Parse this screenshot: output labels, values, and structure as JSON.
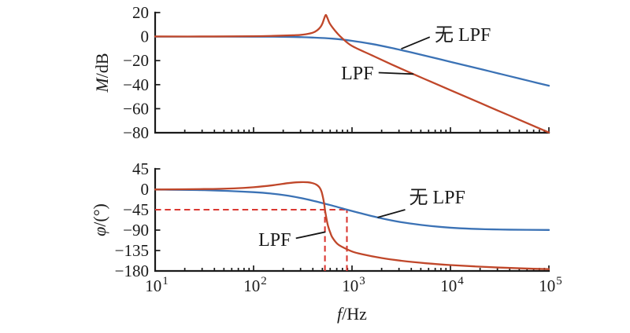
{
  "figure": {
    "background": "#ffffff",
    "description": "Bode plots comparing magnitude and phase response with and without LPF"
  },
  "colors": {
    "blue": "#3b72b5",
    "red": "#c0472a",
    "dashed_red": "#da3832",
    "axis": "#1a1a1a"
  },
  "chart_data": [
    {
      "id": "magnitude",
      "type": "line",
      "x_scale": "log",
      "xlim_log10": [
        1,
        5
      ],
      "ylim": [
        -80,
        20
      ],
      "ylabel": "M/dB",
      "ylabel_parts": [
        {
          "t": "M",
          "italic": true
        },
        {
          "t": "/dB",
          "italic": false
        }
      ],
      "y_ticks": [
        20,
        0,
        -20,
        -40,
        -60,
        -80
      ],
      "y_tick_labels": [
        "20",
        "0",
        "−20",
        "−40",
        "−60",
        "−80"
      ],
      "show_x_tick_labels": false,
      "grid": false,
      "series": [
        {
          "id": "wu-lpf",
          "name": "无 LPF",
          "color_key": "blue",
          "points": [
            [
              1,
              0
            ],
            [
              1.6,
              0
            ],
            [
              2,
              -0.1
            ],
            [
              2.2,
              -0.1
            ],
            [
              2.4,
              -0.3
            ],
            [
              2.6,
              -0.8
            ],
            [
              2.8,
              -1.7
            ],
            [
              3,
              -3.5
            ],
            [
              3.2,
              -6.1
            ],
            [
              3.4,
              -9.4
            ],
            [
              3.6,
              -13.1
            ],
            [
              3.8,
              -17
            ],
            [
              4,
              -21
            ],
            [
              4.2,
              -24.9
            ],
            [
              4.4,
              -28.9
            ],
            [
              4.6,
              -32.9
            ],
            [
              4.8,
              -36.9
            ],
            [
              5,
              -40.9
            ]
          ]
        },
        {
          "id": "lpf",
          "name": "LPF",
          "color_key": "red",
          "points": [
            [
              1,
              0.1
            ],
            [
              1.6,
              0.1
            ],
            [
              2,
              0.3
            ],
            [
              2.2,
              0.6
            ],
            [
              2.4,
              1.1
            ],
            [
              2.5,
              1.6
            ],
            [
              2.6,
              3.2
            ],
            [
              2.65,
              5.5
            ],
            [
              2.68,
              8
            ],
            [
              2.7,
              11
            ],
            [
              2.715,
              14.5
            ],
            [
              2.733,
              18
            ],
            [
              2.75,
              15.5
            ],
            [
              2.77,
              11.5
            ],
            [
              2.8,
              7.8
            ],
            [
              2.85,
              2.8
            ],
            [
              2.9,
              -1.3
            ],
            [
              3,
              -7.8
            ],
            [
              3.2,
              -15.5
            ],
            [
              3.4,
              -23.1
            ],
            [
              3.6,
              -30.4
            ],
            [
              3.8,
              -37.5
            ],
            [
              4,
              -44.6
            ],
            [
              4.2,
              -51.6
            ],
            [
              4.4,
              -58.7
            ],
            [
              4.6,
              -65.7
            ],
            [
              4.8,
              -72.8
            ],
            [
              5,
              -79.8
            ]
          ]
        }
      ],
      "annotations": [
        {
          "id": "wu-lpf-label",
          "text": "无 LPF",
          "anchor": "start",
          "text_pos": [
            3.84,
            -3.6
          ],
          "leader": [
            [
              3.79,
              -0.4
            ],
            [
              3.5,
              -10.2
            ]
          ]
        },
        {
          "id": "lpf-label",
          "text": "LPF",
          "anchor": "end",
          "text_pos": [
            3.22,
            -35.6
          ],
          "leader": [
            [
              3.27,
              -30.0
            ],
            [
              3.625,
              -31.2
            ]
          ]
        }
      ]
    },
    {
      "id": "phase",
      "type": "line",
      "x_scale": "log",
      "xlim_log10": [
        1,
        5
      ],
      "ylim": [
        -180,
        45
      ],
      "xlabel": "f/Hz",
      "xlabel_parts": [
        {
          "t": "f",
          "italic": true
        },
        {
          "t": "/Hz",
          "italic": false
        }
      ],
      "ylabel": "φ/(°)",
      "ylabel_parts": [
        {
          "t": "φ",
          "italic": true
        },
        {
          "t": "/(°)",
          "italic": false
        }
      ],
      "y_ticks": [
        45,
        0,
        -45,
        -90,
        -135,
        -180
      ],
      "y_tick_labels": [
        "45",
        "0",
        "−45",
        "−90",
        "−135",
        "−180"
      ],
      "show_x_tick_labels": true,
      "x_tick_labels": [
        {
          "base": "10",
          "exp": "1"
        },
        {
          "base": "10",
          "exp": "2"
        },
        {
          "base": "10",
          "exp": "3"
        },
        {
          "base": "10",
          "exp": "4"
        },
        {
          "base": "10",
          "exp": "5"
        }
      ],
      "grid": false,
      "series": [
        {
          "id": "wu-lpf",
          "name": "无 LPF",
          "color_key": "blue",
          "points": [
            [
              1,
              -0.6
            ],
            [
              1.5,
              -2
            ],
            [
              2,
              -6.4
            ],
            [
              2.2,
              -10
            ],
            [
              2.4,
              -16
            ],
            [
              2.6,
              -25
            ],
            [
              2.8,
              -36
            ],
            [
              2.95,
              -45
            ],
            [
              3.1,
              -53.5
            ],
            [
              3.3,
              -64
            ],
            [
              3.5,
              -72.5
            ],
            [
              3.7,
              -78.5
            ],
            [
              3.9,
              -83
            ],
            [
              4.1,
              -86
            ],
            [
              4.35,
              -88
            ],
            [
              4.6,
              -89
            ],
            [
              5,
              -89.7
            ]
          ]
        },
        {
          "id": "lpf",
          "name": "LPF",
          "color_key": "red",
          "points": [
            [
              1,
              -0.5
            ],
            [
              1.5,
              0.5
            ],
            [
              1.8,
              2
            ],
            [
              2,
              4.5
            ],
            [
              2.2,
              9
            ],
            [
              2.35,
              13.5
            ],
            [
              2.45,
              15.5
            ],
            [
              2.55,
              15.5
            ],
            [
              2.6,
              13.5
            ],
            [
              2.64,
              10
            ],
            [
              2.67,
              4
            ],
            [
              2.69,
              -5
            ],
            [
              2.705,
              -18
            ],
            [
              2.718,
              -33
            ],
            [
              2.725,
              -45
            ],
            [
              2.735,
              -58
            ],
            [
              2.75,
              -75
            ],
            [
              2.765,
              -87
            ],
            [
              2.78,
              -96
            ],
            [
              2.8,
              -106
            ],
            [
              2.85,
              -120
            ],
            [
              2.9,
              -127
            ],
            [
              3,
              -137
            ],
            [
              3.1,
              -143
            ],
            [
              3.3,
              -151.5
            ],
            [
              3.5,
              -157.5
            ],
            [
              3.75,
              -163
            ],
            [
              4,
              -167
            ],
            [
              4.25,
              -170
            ],
            [
              4.5,
              -172.5
            ],
            [
              4.75,
              -174.5
            ],
            [
              5,
              -176
            ]
          ]
        }
      ],
      "guides": {
        "color_key": "dashed_red",
        "h_lines": [
          {
            "y": -45,
            "x_from": 1,
            "x_to": 2.948
          }
        ],
        "v_lines": [
          {
            "x": 2.725,
            "y_from": -180,
            "y_to": -45
          },
          {
            "x": 2.948,
            "y_from": -180,
            "y_to": -45
          }
        ]
      },
      "annotations": [
        {
          "id": "wu-lpf-label",
          "text": "无 LPF",
          "anchor": "start",
          "text_pos": [
            3.58,
            -31
          ],
          "leader": [
            [
              3.54,
              -45
            ],
            [
              3.26,
              -62
            ]
          ]
        },
        {
          "id": "lpf-label",
          "text": "LPF",
          "anchor": "end",
          "text_pos": [
            2.38,
            -125
          ],
          "leader": [
            [
              2.43,
              -108
            ],
            [
              2.73,
              -94
            ]
          ]
        }
      ]
    }
  ]
}
